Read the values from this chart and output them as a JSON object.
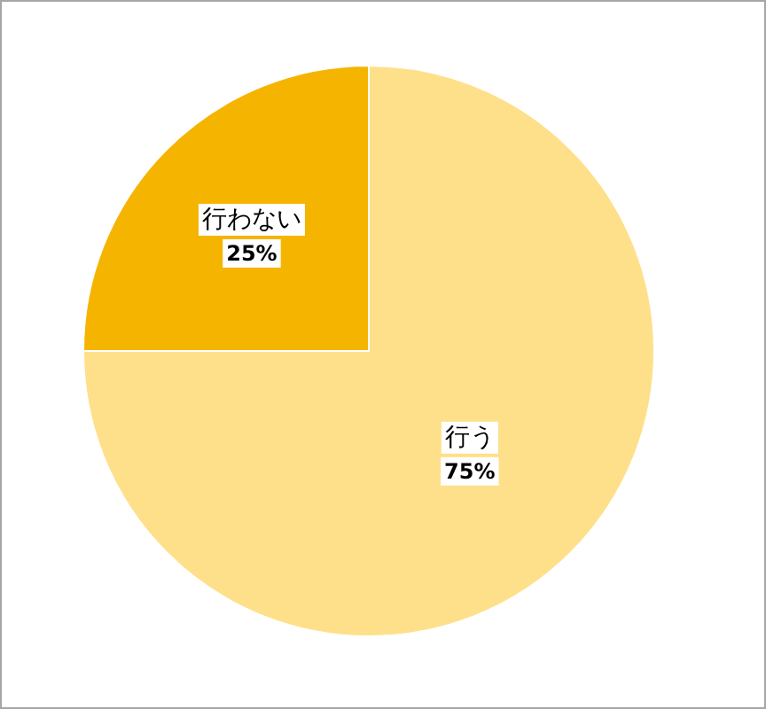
{
  "chart_data": {
    "type": "pie",
    "categories": [
      "行う",
      "行わない"
    ],
    "values": [
      75,
      25
    ],
    "colors": [
      "#ffe08a",
      "#f5b400"
    ],
    "value_labels": [
      "75%",
      "25%"
    ]
  }
}
